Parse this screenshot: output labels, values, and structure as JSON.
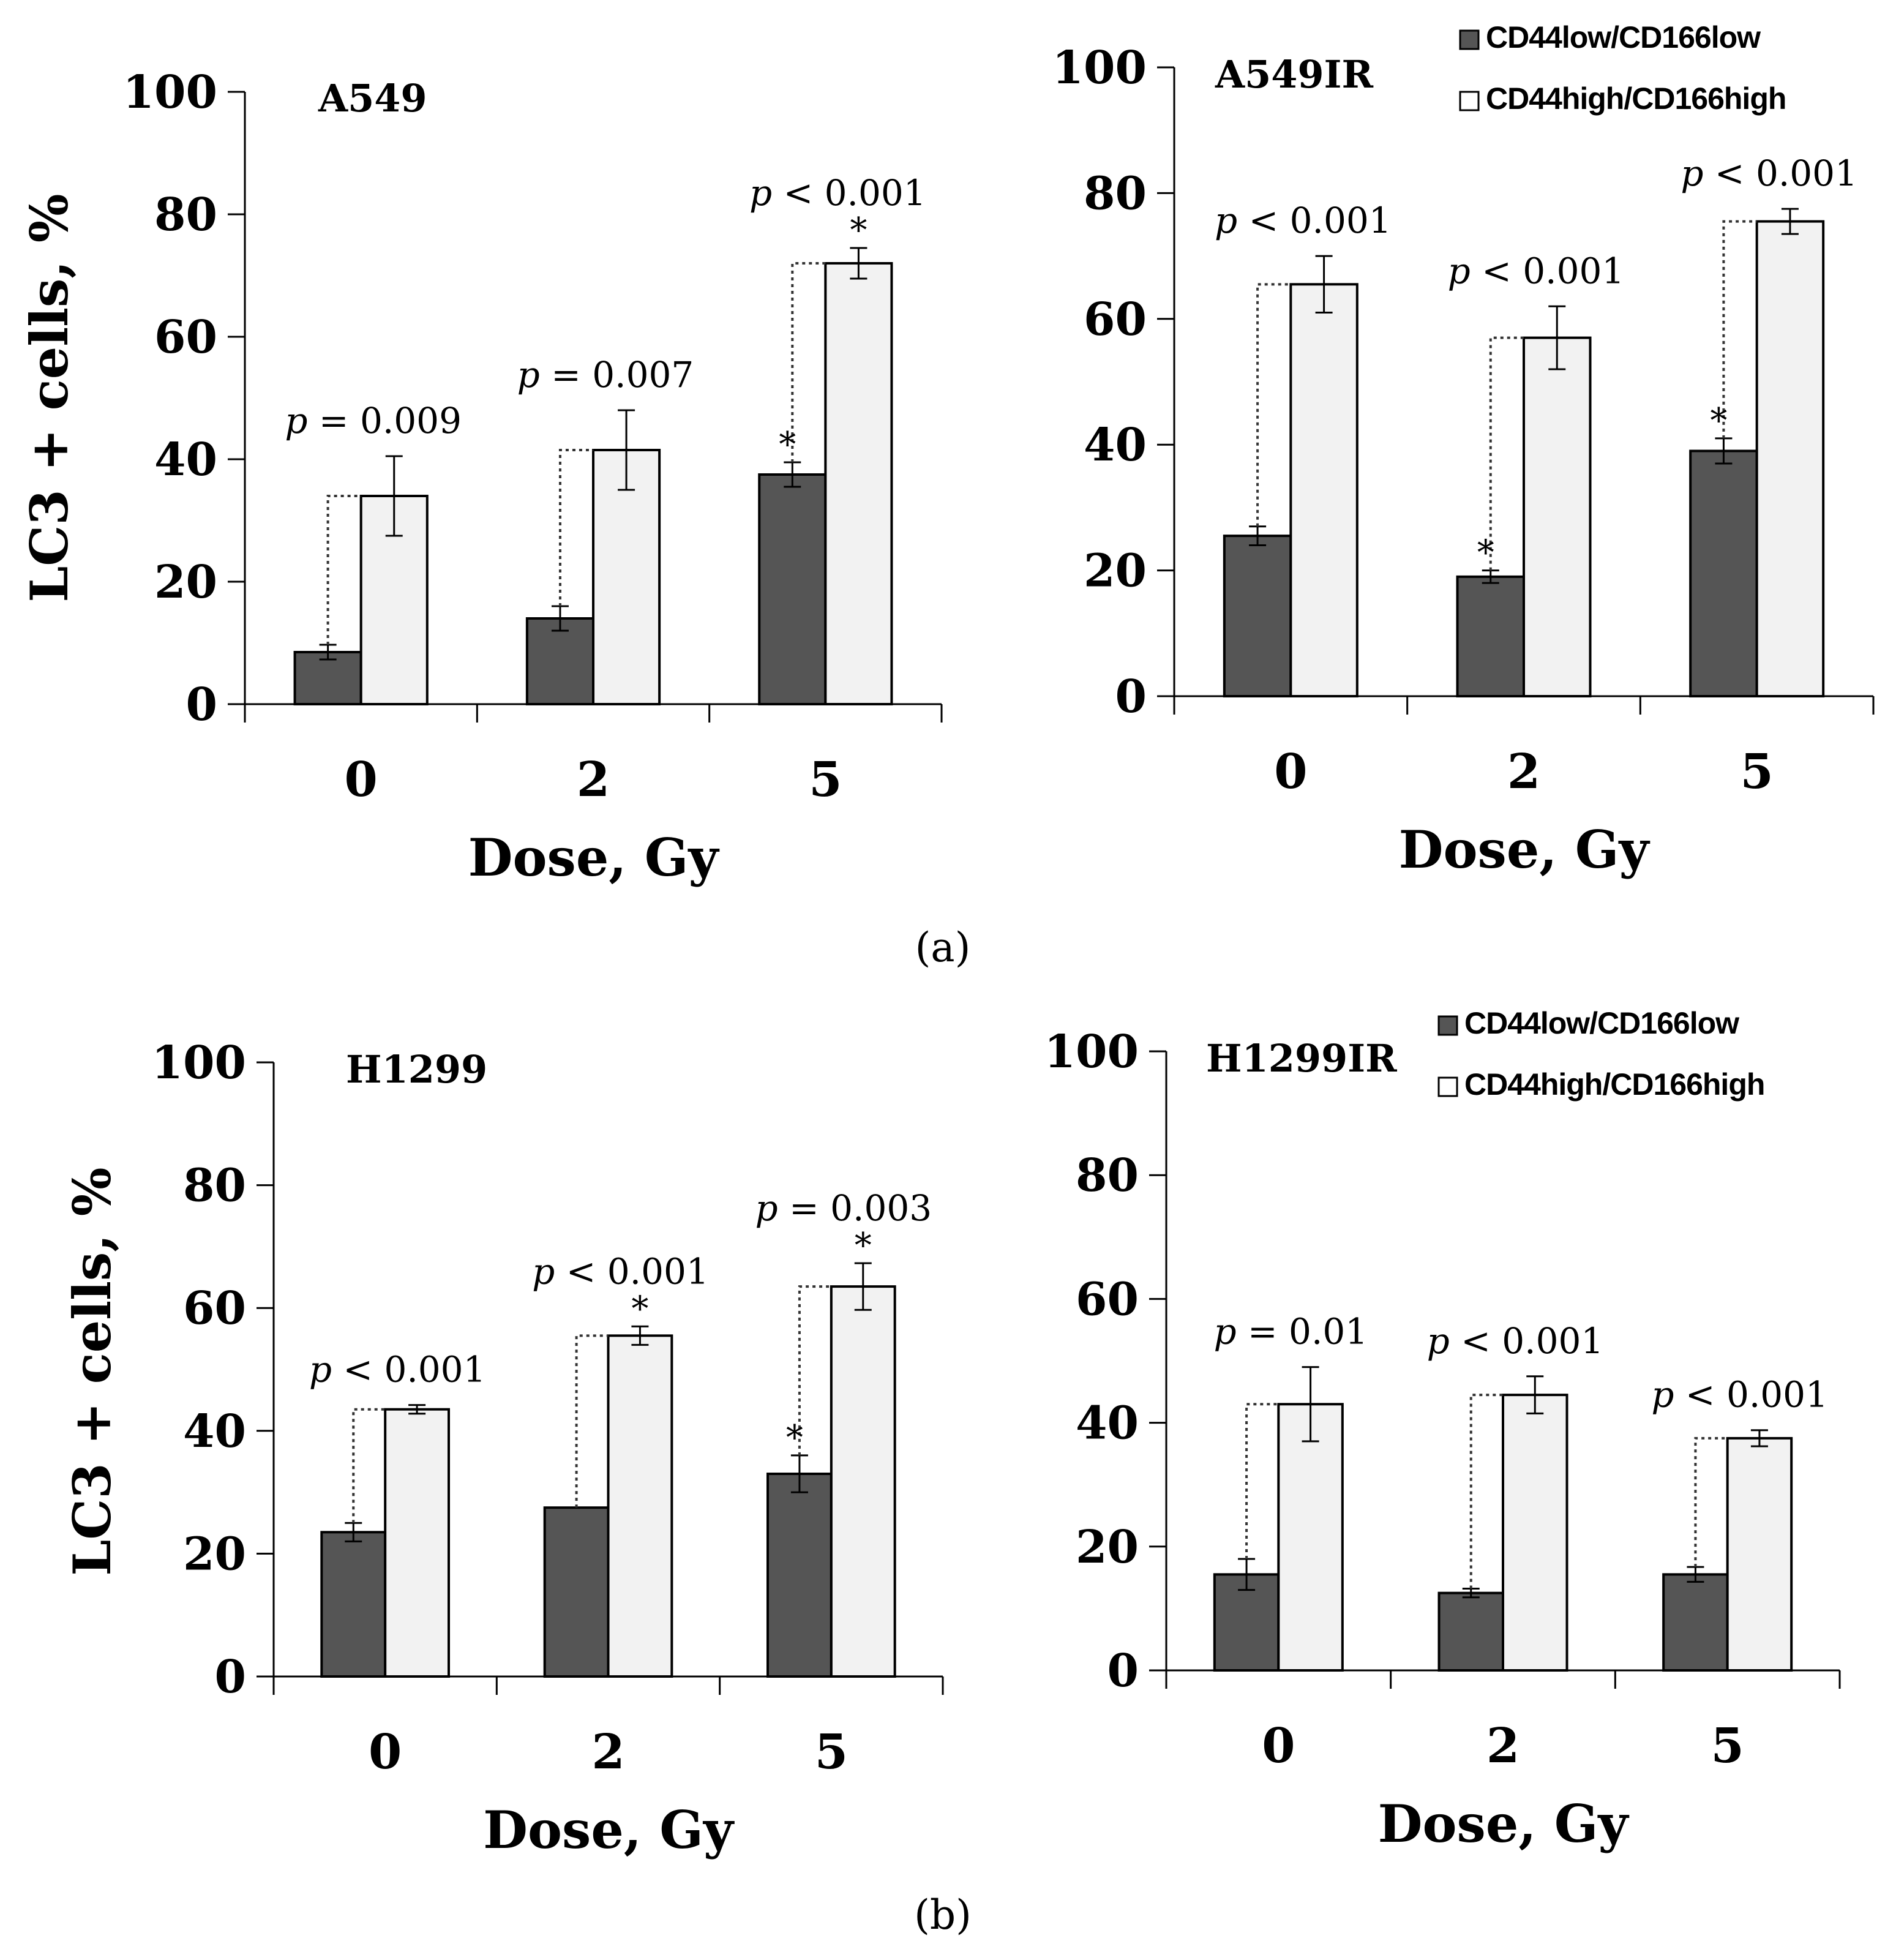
{
  "colors": {
    "low": "#555555",
    "high": "#f2f2f2",
    "stroke": "#000000",
    "connector": "#333333"
  },
  "legend": {
    "low_label": "CD44low/CD166low",
    "high_label": "CD44high/CD166high"
  },
  "panel_labels": {
    "a": "(a)",
    "b": "(b)"
  },
  "chart_data": [
    {
      "type": "bar",
      "title": "A549",
      "xlabel": "Dose, Gy",
      "ylabel": "LC3 + cells, %",
      "ylim": [
        0,
        100
      ],
      "yticks": [
        "0",
        "20",
        "40",
        "60",
        "80",
        "100"
      ],
      "categories": [
        "0",
        "2",
        "5"
      ],
      "series": [
        {
          "name": "CD44low/CD166low",
          "values": [
            8.5,
            14,
            37.5
          ],
          "errors": [
            1.2,
            2.0,
            2.0
          ],
          "stars": [
            "",
            "",
            "*"
          ]
        },
        {
          "name": "CD44high/CD166high",
          "values": [
            34,
            41.5,
            72
          ],
          "errors": [
            6.5,
            6.5,
            2.5
          ],
          "stars": [
            "",
            "",
            "*"
          ]
        }
      ],
      "pvalues": [
        {
          "sym": "p",
          "rest": " = 0.009"
        },
        {
          "sym": "p",
          "rest": " = 0.007"
        },
        {
          "sym": "p",
          "rest": " < 0.001"
        }
      ]
    },
    {
      "type": "bar",
      "title": "A549IR",
      "xlabel": "Dose, Gy",
      "ylabel": "",
      "ylim": [
        0,
        100
      ],
      "yticks": [
        "0",
        "20",
        "40",
        "60",
        "80",
        "100"
      ],
      "categories": [
        "0",
        "2",
        "5"
      ],
      "series": [
        {
          "name": "CD44low/CD166low",
          "values": [
            25.5,
            19,
            39
          ],
          "errors": [
            1.5,
            1.0,
            2.0
          ],
          "stars": [
            "",
            "*",
            "*"
          ]
        },
        {
          "name": "CD44high/CD166high",
          "values": [
            65.5,
            57,
            75.5
          ],
          "errors": [
            4.5,
            5.0,
            2.0
          ],
          "stars": [
            "",
            "",
            ""
          ]
        }
      ],
      "pvalues": [
        {
          "sym": "p",
          "rest": " < 0.001"
        },
        {
          "sym": "p",
          "rest": " < 0.001"
        },
        {
          "sym": "p",
          "rest": " < 0.001"
        }
      ]
    },
    {
      "type": "bar",
      "title": "H1299",
      "xlabel": "Dose, Gy",
      "ylabel": "LC3 + cells, %",
      "ylim": [
        0,
        100
      ],
      "yticks": [
        "0",
        "20",
        "40",
        "60",
        "80",
        "100"
      ],
      "categories": [
        "0",
        "2",
        "5"
      ],
      "series": [
        {
          "name": "CD44low/CD166low",
          "values": [
            23.5,
            27.5,
            33
          ],
          "errors": [
            1.5,
            0,
            3.0
          ],
          "stars": [
            "",
            "",
            "*"
          ]
        },
        {
          "name": "CD44high/CD166high",
          "values": [
            43.5,
            55.5,
            63.5
          ],
          "errors": [
            0.7,
            1.5,
            3.8
          ],
          "stars": [
            "",
            "*",
            "*"
          ]
        }
      ],
      "pvalues": [
        {
          "sym": "p",
          "rest": " < 0.001"
        },
        {
          "sym": "p",
          "rest": " < 0.001"
        },
        {
          "sym": "p",
          "rest": " = 0.003"
        }
      ]
    },
    {
      "type": "bar",
      "title": "H1299IR",
      "xlabel": "Dose, Gy",
      "ylabel": "",
      "ylim": [
        0,
        100
      ],
      "yticks": [
        "0",
        "20",
        "40",
        "60",
        "80",
        "100"
      ],
      "categories": [
        "0",
        "2",
        "5"
      ],
      "series": [
        {
          "name": "CD44low/CD166low",
          "values": [
            15.5,
            12.5,
            15.5
          ],
          "errors": [
            2.5,
            0.7,
            1.2
          ],
          "stars": [
            "",
            "",
            ""
          ]
        },
        {
          "name": "CD44high/CD166high",
          "values": [
            43,
            44.5,
            37.5
          ],
          "errors": [
            6.0,
            3.0,
            1.3
          ],
          "stars": [
            "",
            "",
            ""
          ]
        }
      ],
      "pvalues": [
        {
          "sym": "p",
          "rest": " = 0.01"
        },
        {
          "sym": "p",
          "rest": " < 0.001"
        },
        {
          "sym": "p",
          "rest": " < 0.001"
        }
      ]
    }
  ]
}
